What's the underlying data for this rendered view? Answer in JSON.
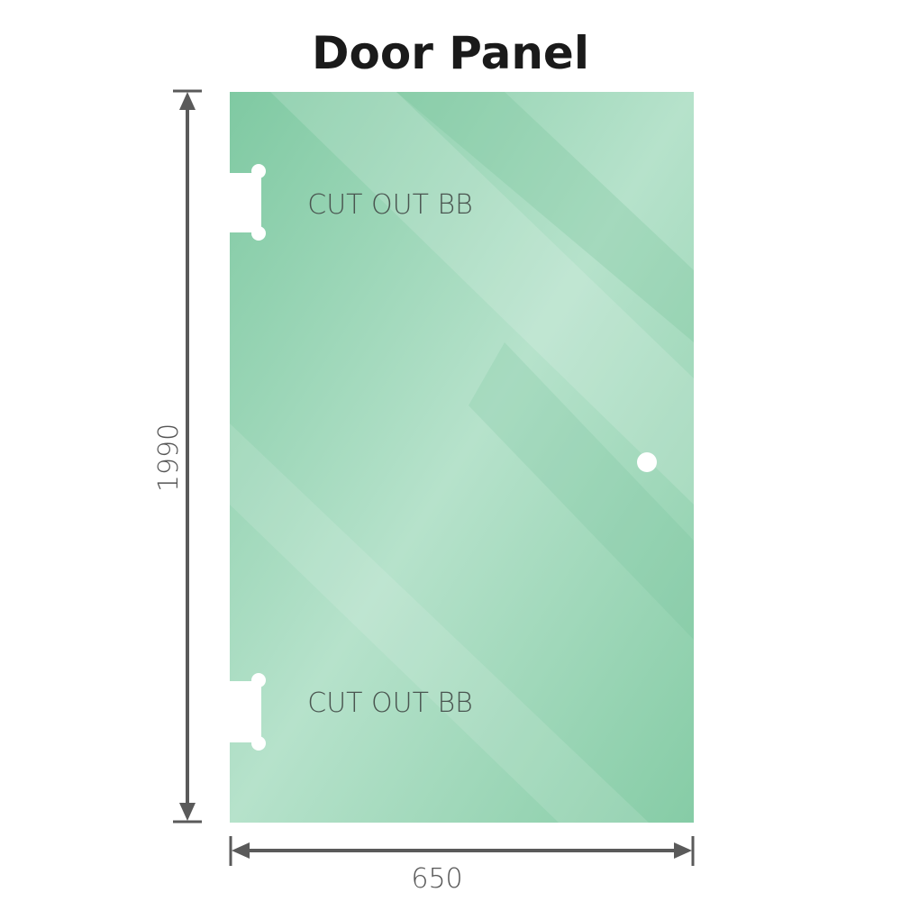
{
  "title": "Door Panel",
  "panel": {
    "color": "#8fd0ae",
    "cutout_top_label": "CUT OUT BB",
    "cutout_bottom_label": "CUT OUT BB"
  },
  "dimensions": {
    "height": "1990",
    "width": "650",
    "line_color": "#5a5a5a"
  }
}
